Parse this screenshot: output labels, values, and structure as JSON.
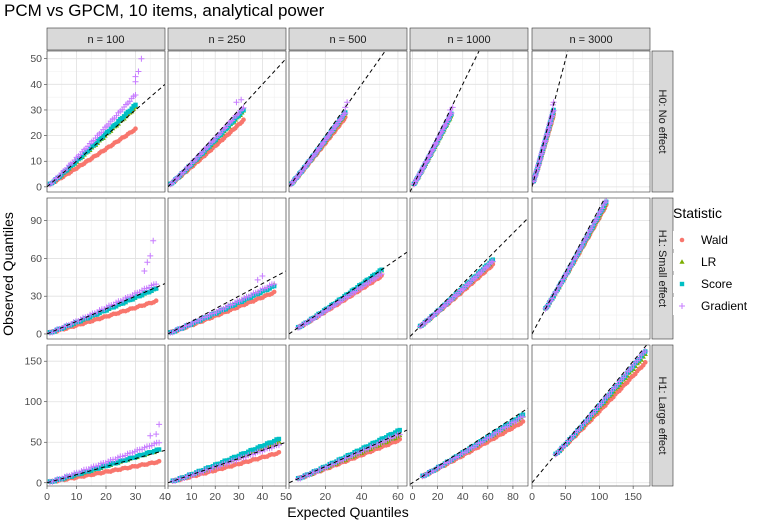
{
  "chart_data": {
    "type": "scatter",
    "title": "PCM vs GPCM, 10 items, analytical power",
    "xlabel": "Expected Quantiles",
    "ylabel": "Observed Quantiles",
    "columns": [
      "n = 100",
      "n = 250",
      "n = 500",
      "n = 1000",
      "n = 3000"
    ],
    "rows": [
      "H0: No effect",
      "H1: Small effect",
      "H1: Large effect"
    ],
    "legend": {
      "title": "Statistic",
      "entries": [
        {
          "name": "Wald",
          "color": "#F8766D",
          "shape": "circle"
        },
        {
          "name": "LR",
          "color": "#7CAE00",
          "shape": "triangle"
        },
        {
          "name": "Score",
          "color": "#00BFC4",
          "shape": "square"
        },
        {
          "name": "Gradient",
          "color": "#C77CFF",
          "shape": "plus"
        }
      ],
      "position": "right"
    },
    "reference_line": "y = x (dashed)",
    "x_axes": [
      {
        "lim": [
          0,
          40
        ],
        "ticks": [
          0,
          10,
          20,
          30,
          40
        ]
      },
      {
        "lim": [
          0,
          50
        ],
        "ticks": [
          0,
          10,
          20,
          30,
          40,
          50
        ]
      },
      {
        "lim": [
          0,
          65
        ],
        "ticks": [
          0,
          20,
          40,
          60
        ]
      },
      {
        "lim": [
          -2,
          92
        ],
        "ticks": [
          0,
          20,
          40,
          60,
          80
        ]
      },
      {
        "lim": [
          0,
          175
        ],
        "ticks": [
          0,
          50,
          100,
          150
        ]
      }
    ],
    "y_axes": [
      {
        "lim": [
          -2,
          53
        ],
        "ticks": [
          0,
          10,
          20,
          30,
          40,
          50
        ]
      },
      {
        "lim": [
          -4,
          108
        ],
        "ticks": [
          0,
          30,
          60,
          90
        ]
      },
      {
        "lim": [
          -4,
          170
        ],
        "ticks": [
          0,
          50,
          100,
          150
        ]
      }
    ],
    "panels": [
      {
        "row": 0,
        "col": 0,
        "x_range": [
          1,
          30
        ],
        "wald_end": 22.5,
        "lr_end": 31,
        "score_end": 32,
        "gradient_end": 36,
        "gradient_outliers": [
          [
            30,
            41
          ],
          [
            30,
            43
          ],
          [
            31,
            45
          ],
          [
            32,
            50
          ]
        ]
      },
      {
        "row": 0,
        "col": 1,
        "x_range": [
          1,
          32
        ],
        "wald_end": 26,
        "lr_end": 29.5,
        "score_end": 30,
        "gradient_end": 31,
        "gradient_outliers": [
          [
            29,
            33
          ],
          [
            31,
            34
          ]
        ]
      },
      {
        "row": 0,
        "col": 2,
        "x_range": [
          1,
          31
        ],
        "wald_end": 27,
        "lr_end": 28.5,
        "score_end": 29,
        "gradient_end": 29,
        "gradient_outliers": [
          [
            31,
            31
          ],
          [
            32,
            33
          ]
        ]
      },
      {
        "row": 0,
        "col": 3,
        "x_range": [
          1,
          31
        ],
        "wald_end": 28,
        "lr_end": 28,
        "score_end": 28.5,
        "gradient_end": 29,
        "gradient_outliers": [
          [
            30,
            30
          ],
          [
            32,
            31
          ]
        ]
      },
      {
        "row": 0,
        "col": 4,
        "x_range": [
          2,
          32
        ],
        "wald_end": 28,
        "lr_end": 29,
        "score_end": 30,
        "gradient_end": 30,
        "gradient_outliers": [
          [
            31,
            32
          ],
          [
            32,
            33
          ]
        ]
      },
      {
        "row": 1,
        "col": 0,
        "x_range": [
          1,
          37
        ],
        "wald_end": 26,
        "lr_end": 36,
        "score_end": 36,
        "gradient_end": 40,
        "gradient_outliers": [
          [
            33,
            50
          ],
          [
            34,
            57
          ],
          [
            35,
            62
          ],
          [
            36,
            74
          ]
        ]
      },
      {
        "row": 1,
        "col": 1,
        "x_range": [
          1,
          45
        ],
        "wald_end": 33,
        "lr_end": 39,
        "score_end": 38,
        "gradient_end": 40,
        "gradient_outliers": [
          [
            38,
            43
          ],
          [
            40,
            46
          ]
        ]
      },
      {
        "row": 1,
        "col": 2,
        "x_range": [
          5,
          51
        ],
        "wald_end": 46,
        "lr_end": 50,
        "score_end": 51,
        "gradient_end": 48,
        "gradient_outliers": []
      },
      {
        "row": 1,
        "col": 3,
        "x_range": [
          6,
          64
        ],
        "wald_end": 55,
        "lr_end": 58,
        "score_end": 59,
        "gradient_end": 58,
        "gradient_outliers": []
      },
      {
        "row": 1,
        "col": 4,
        "x_range": [
          20,
          110
        ],
        "wald_end": 102,
        "lr_end": 104,
        "score_end": 105,
        "gradient_end": 106,
        "gradient_outliers": []
      },
      {
        "row": 2,
        "col": 0,
        "x_range": [
          1,
          38
        ],
        "wald_end": 26,
        "lr_end": 40,
        "score_end": 41,
        "gradient_end": 50,
        "gradient_outliers": [
          [
            35,
            58
          ],
          [
            37,
            60
          ],
          [
            38,
            72
          ]
        ]
      },
      {
        "row": 2,
        "col": 1,
        "x_range": [
          2,
          47
        ],
        "wald_end": 37,
        "lr_end": 50,
        "score_end": 54,
        "gradient_end": 47,
        "gradient_outliers": []
      },
      {
        "row": 2,
        "col": 2,
        "x_range": [
          5,
          61
        ],
        "wald_end": 53,
        "lr_end": 58,
        "score_end": 65,
        "gradient_end": 60,
        "gradient_outliers": []
      },
      {
        "row": 2,
        "col": 3,
        "x_range": [
          8,
          88
        ],
        "wald_end": 75,
        "lr_end": 82,
        "score_end": 84,
        "gradient_end": 82,
        "gradient_outliers": []
      },
      {
        "row": 2,
        "col": 4,
        "x_range": [
          35,
          168
        ],
        "wald_end": 148,
        "lr_end": 158,
        "score_end": 162,
        "gradient_end": 163,
        "gradient_outliers": []
      }
    ]
  }
}
